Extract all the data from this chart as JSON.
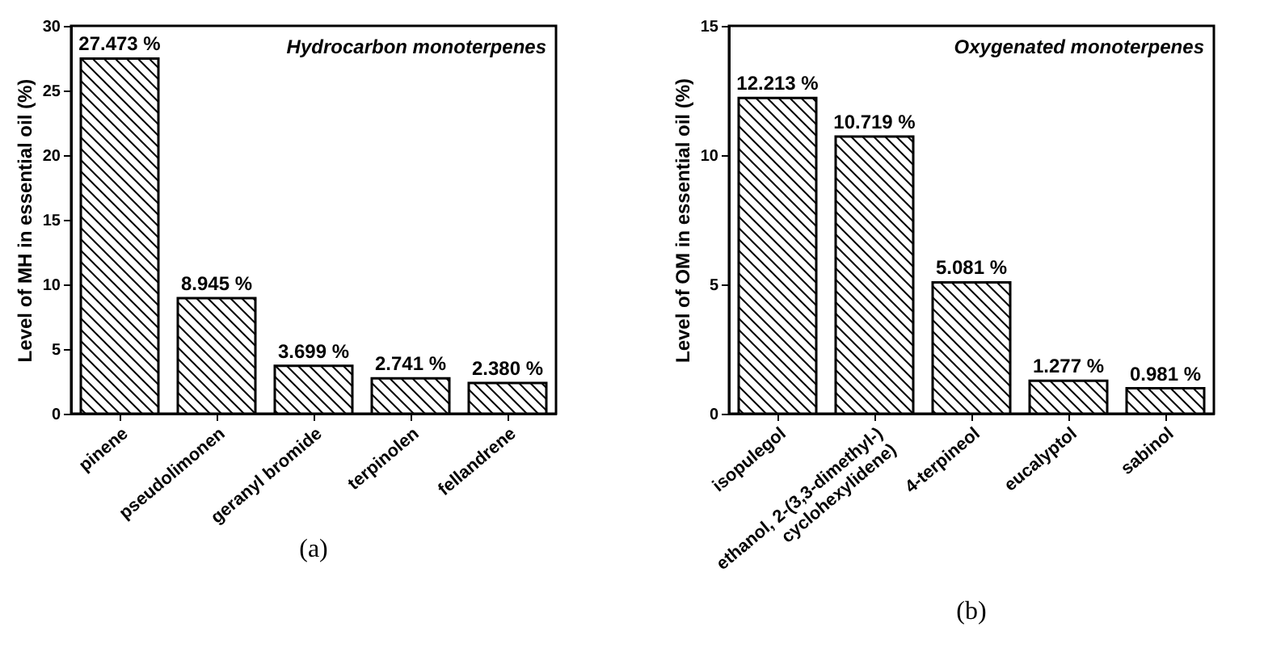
{
  "chart_data": [
    {
      "type": "bar",
      "title": "(a)",
      "annotations": [
        "Hydrocarbon monoterpenes"
      ],
      "ylabel": "Level of MH in essential oil (%)",
      "categories": [
        "pinene",
        "pseudolimonen",
        "geranyl bromide",
        "terpinolen",
        "fellandrene"
      ],
      "values": [
        27.473,
        8.945,
        3.699,
        2.741,
        2.38
      ],
      "value_labels": [
        "27.473 %",
        "8.945 %",
        "3.699 %",
        "2.741 %",
        "2.380 %"
      ],
      "color": "#000000",
      "ylim": [
        0,
        30
      ],
      "yticks": [
        0,
        5,
        10,
        15,
        20,
        25,
        30
      ]
    },
    {
      "type": "bar",
      "title": "(b)",
      "annotations": [
        "Oxygenated monoterpenes"
      ],
      "ylabel": "Level of OM in essential oil (%)",
      "categories": [
        "isopulegol",
        "ethanol, 2-(3,3-dimethyl-)\ncyclohexylidene)",
        "4-terpineol",
        "eucalyptol",
        "sabinol"
      ],
      "values": [
        12.213,
        10.719,
        5.081,
        1.277,
        0.981
      ],
      "value_labels": [
        "12.213 %",
        "10.719 %",
        "5.081 %",
        "1.277 %",
        "0.981 %"
      ],
      "color": "#000000",
      "ylim": [
        0,
        15
      ],
      "yticks": [
        0,
        5,
        10,
        15
      ]
    }
  ]
}
